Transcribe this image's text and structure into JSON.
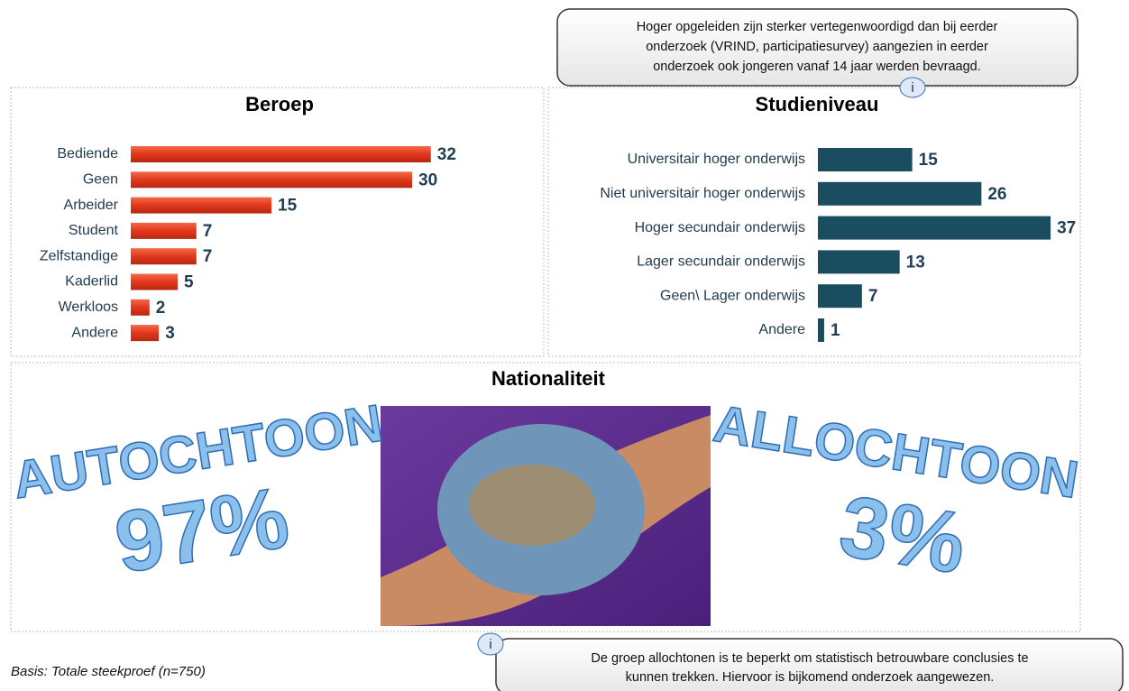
{
  "chart_data": [
    {
      "type": "hbar",
      "title": "Beroep",
      "categories": [
        "Bediende",
        "Geen",
        "Arbeider",
        "Student",
        "Zelfstandige",
        "Kaderlid",
        "Werkloos",
        "Andere"
      ],
      "values": [
        32,
        30,
        15,
        7,
        7,
        5,
        2,
        3
      ],
      "color": "#e2381c",
      "xlim": [
        0,
        35
      ]
    },
    {
      "type": "hbar",
      "title": "Studieniveau",
      "categories": [
        "Universitair hoger onderwijs",
        "Niet universitair hoger onderwijs",
        "Hoger secundair onderwijs",
        "Lager secundair onderwijs",
        "Geen\\ Lager onderwijs",
        "Andere"
      ],
      "values": [
        15,
        26,
        37,
        13,
        7,
        1
      ],
      "color": "#1b4d61",
      "xlim": [
        0,
        40
      ]
    }
  ],
  "nationaliteit": {
    "title": "Nationaliteit",
    "left": {
      "label": "AUTOCHTOON",
      "share": "97%"
    },
    "right": {
      "label": "ALLOCHTOON",
      "share": "3%"
    }
  },
  "callout_top": [
    "Hoger opgeleiden zijn sterker vertegenwoordigd dan bij eerder",
    "onderzoek (VRIND, participatiesurvey) aangezien in eerder",
    "onderzoek ook jongeren vanaf 14 jaar werden bevraagd."
  ],
  "callout_bottom": [
    "De groep allochtonen is te beperkt om statistisch betrouwbare conclusies te",
    "kunnen trekken. Hiervoor is bijkomend onderzoek aangewezen."
  ],
  "info_icon": "i",
  "basis": "Basis: Totale steekproef (n=750)"
}
